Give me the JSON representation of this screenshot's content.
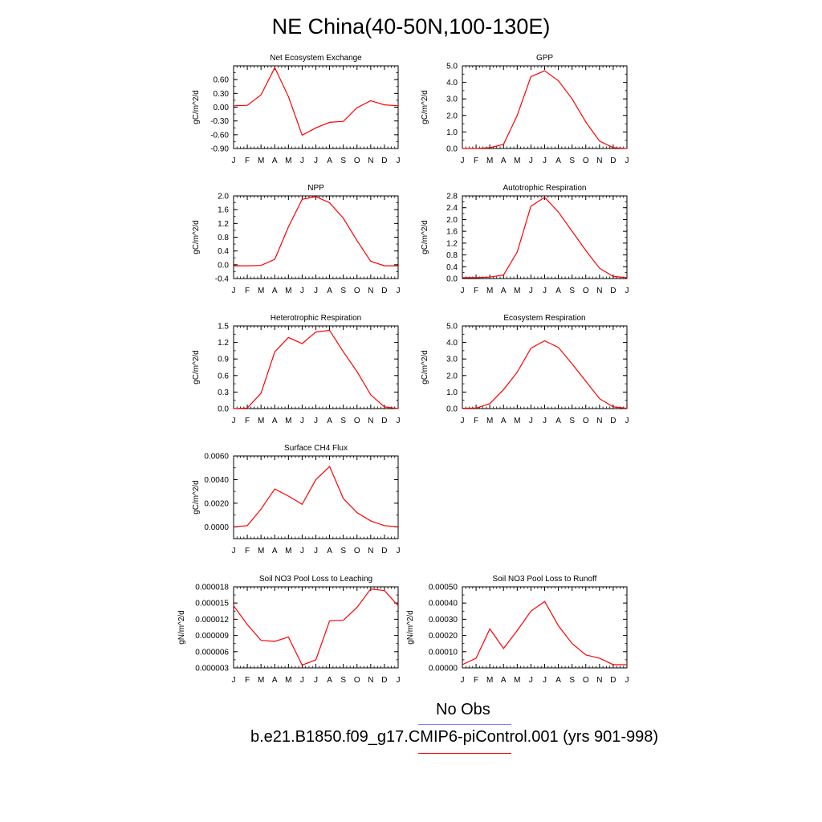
{
  "title": "NE China(40-50N,100-130E)",
  "legend": {
    "obs_label": "No Obs",
    "obs_color": "#8080ff",
    "model_label": "b.e21.B1850.f09_g17.CMIP6-piControl.001 (yrs 901-998)",
    "model_color": "#ff0000"
  },
  "chart_data": [
    {
      "type": "line",
      "title": "Net Ecosystem Exchange",
      "ylabel": "gC/m^2/d",
      "x": [
        "J",
        "F",
        "M",
        "A",
        "M",
        "J",
        "J",
        "A",
        "S",
        "O",
        "N",
        "D",
        "J"
      ],
      "ylim": [
        -0.9,
        0.9
      ],
      "yticks": [
        "-0.90",
        "-0.60",
        "-0.30",
        "0.00",
        "0.30",
        "0.60"
      ],
      "series": [
        {
          "values": [
            0.03,
            0.04,
            0.27,
            0.86,
            0.23,
            -0.61,
            -0.45,
            -0.33,
            -0.31,
            -0.01,
            0.14,
            0.05,
            0.03
          ]
        }
      ]
    },
    {
      "type": "line",
      "title": "GPP",
      "ylabel": "gC/m^2/d",
      "x": [
        "J",
        "F",
        "M",
        "A",
        "M",
        "J",
        "J",
        "A",
        "S",
        "O",
        "N",
        "D",
        "J"
      ],
      "ylim": [
        0,
        5
      ],
      "yticks": [
        "0.0",
        "1.0",
        "2.0",
        "3.0",
        "4.0",
        "5.0"
      ],
      "series": [
        {
          "values": [
            0.0,
            0.0,
            0.05,
            0.25,
            2.0,
            4.35,
            4.7,
            4.1,
            3.0,
            1.6,
            0.45,
            0.05,
            0.0
          ]
        }
      ]
    },
    {
      "type": "line",
      "title": "NPP",
      "ylabel": "gC/m^2/d",
      "x": [
        "J",
        "F",
        "M",
        "A",
        "M",
        "J",
        "J",
        "A",
        "S",
        "O",
        "N",
        "D",
        "J"
      ],
      "ylim": [
        -0.4,
        2.0
      ],
      "yticks": [
        "-0.4",
        "0.0",
        "0.4",
        "0.8",
        "1.2",
        "1.6",
        "2.0"
      ],
      "series": [
        {
          "values": [
            -0.03,
            -0.03,
            -0.02,
            0.16,
            1.1,
            1.9,
            1.98,
            1.8,
            1.35,
            0.7,
            0.1,
            -0.03,
            -0.03
          ]
        }
      ]
    },
    {
      "type": "line",
      "title": "Autotrophic Respiration",
      "ylabel": "gC/m^2/d",
      "x": [
        "J",
        "F",
        "M",
        "A",
        "M",
        "J",
        "J",
        "A",
        "S",
        "O",
        "N",
        "D",
        "J"
      ],
      "ylim": [
        0,
        2.8
      ],
      "yticks": [
        "0.0",
        "0.4",
        "0.8",
        "1.2",
        "1.6",
        "2.0",
        "2.4",
        "2.8"
      ],
      "series": [
        {
          "values": [
            0.03,
            0.03,
            0.05,
            0.12,
            0.9,
            2.45,
            2.75,
            2.25,
            1.6,
            0.95,
            0.35,
            0.07,
            0.03
          ]
        }
      ]
    },
    {
      "type": "line",
      "title": "Heterotrophic Respiration",
      "ylabel": "gC/m^2/d",
      "x": [
        "J",
        "F",
        "M",
        "A",
        "M",
        "J",
        "J",
        "A",
        "S",
        "O",
        "N",
        "D",
        "J"
      ],
      "ylim": [
        0,
        1.5
      ],
      "yticks": [
        "0.0",
        "0.3",
        "0.6",
        "0.9",
        "1.2",
        "1.5"
      ],
      "series": [
        {
          "values": [
            0.0,
            0.01,
            0.28,
            1.03,
            1.29,
            1.18,
            1.39,
            1.42,
            1.03,
            0.67,
            0.25,
            0.03,
            0.0
          ]
        }
      ]
    },
    {
      "type": "line",
      "title": "Ecosystem Respiration",
      "ylabel": "gC/m^2/d",
      "x": [
        "J",
        "F",
        "M",
        "A",
        "M",
        "J",
        "J",
        "A",
        "S",
        "O",
        "N",
        "D",
        "J"
      ],
      "ylim": [
        0,
        5
      ],
      "yticks": [
        "0.0",
        "1.0",
        "2.0",
        "3.0",
        "4.0",
        "5.0"
      ],
      "series": [
        {
          "values": [
            0.02,
            0.03,
            0.3,
            1.15,
            2.2,
            3.65,
            4.1,
            3.7,
            2.7,
            1.65,
            0.6,
            0.1,
            0.02
          ]
        }
      ]
    },
    {
      "type": "line",
      "title": "Surface CH4 Flux",
      "ylabel": "gC/m^2/d",
      "x": [
        "J",
        "F",
        "M",
        "A",
        "M",
        "J",
        "J",
        "A",
        "S",
        "O",
        "N",
        "D",
        "J"
      ],
      "ylim": [
        -0.001,
        0.006
      ],
      "yticks": [
        "0.0000",
        "0.0020",
        "0.0040",
        "0.0060"
      ],
      "series": [
        {
          "values": [
            0.0,
            0.0001,
            0.0015,
            0.0032,
            0.0026,
            0.0019,
            0.004,
            0.0051,
            0.0024,
            0.0012,
            0.0005,
            0.0001,
            0.0
          ]
        }
      ]
    },
    {
      "type": "line",
      "title": "Soil NO3 Pool Loss to Leaching",
      "ylabel": "gN/m^2/d",
      "x": [
        "J",
        "F",
        "M",
        "A",
        "M",
        "J",
        "J",
        "A",
        "S",
        "O",
        "N",
        "D",
        "J"
      ],
      "ylim": [
        3e-06,
        1.8e-05
      ],
      "yticks": [
        "0.000003",
        "0.000006",
        "0.000009",
        "0.000012",
        "0.000015",
        "0.000018"
      ],
      "series": [
        {
          "values": [
            1.45e-05,
            1.1e-05,
            8.1e-06,
            7.9e-06,
            8.7e-06,
            3.5e-06,
            4.5e-06,
            1.17e-05,
            1.18e-05,
            1.42e-05,
            1.76e-05,
            1.73e-05,
            1.45e-05
          ]
        }
      ]
    },
    {
      "type": "line",
      "title": "Soil NO3 Pool Loss to Runoff",
      "ylabel": "gN/m^2/d",
      "x": [
        "J",
        "F",
        "M",
        "A",
        "M",
        "J",
        "J",
        "A",
        "S",
        "O",
        "N",
        "D",
        "J"
      ],
      "ylim": [
        0,
        0.0005
      ],
      "yticks": [
        "0.00000",
        "0.00010",
        "0.00020",
        "0.00030",
        "0.00040",
        "0.00050"
      ],
      "series": [
        {
          "values": [
            2e-05,
            6e-05,
            0.00024,
            0.00012,
            0.00023,
            0.00035,
            0.00041,
            0.00026,
            0.00015,
            8e-05,
            6e-05,
            2e-05,
            2e-05
          ]
        }
      ]
    }
  ]
}
